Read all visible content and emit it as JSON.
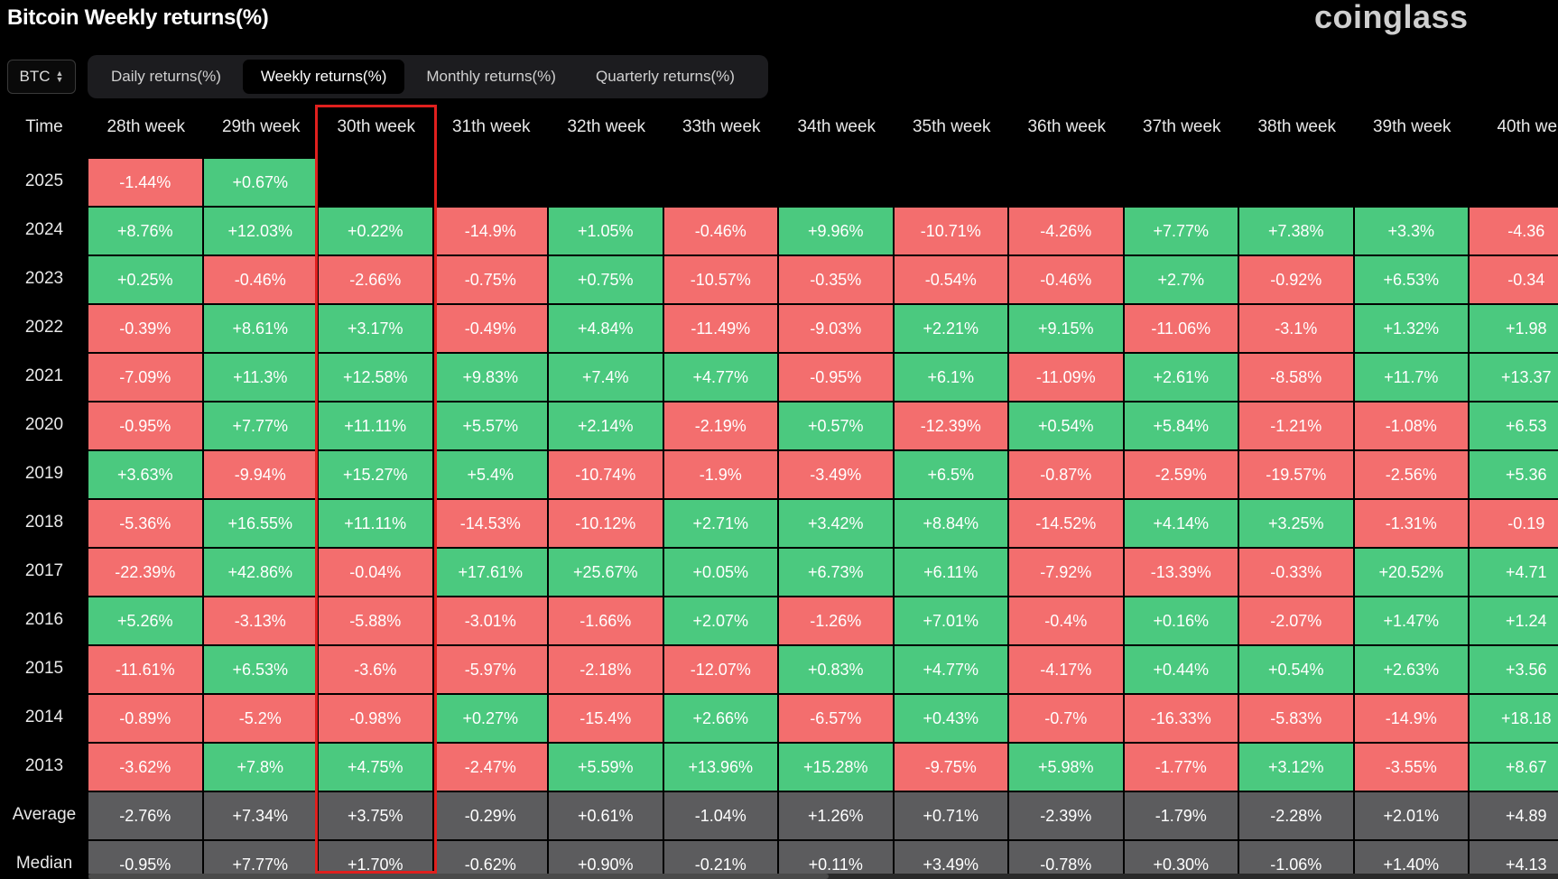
{
  "title": "Bitcoin Weekly returns(%)",
  "brand": "coinglass",
  "coin_select": {
    "value": "BTC",
    "icon": "updown-chevron-icon"
  },
  "tabs": [
    {
      "label": "Daily returns(%)",
      "active": false
    },
    {
      "label": "Weekly returns(%)",
      "active": true
    },
    {
      "label": "Monthly returns(%)",
      "active": false
    },
    {
      "label": "Quarterly returns(%)",
      "active": false
    }
  ],
  "colors": {
    "positive": "#4bc97f",
    "negative": "#f36e6e",
    "summary": "#5c5c5e",
    "highlight": "#e0201e"
  },
  "table": {
    "corner_label": "Time",
    "columns": [
      "28th week",
      "29th week",
      "30th week",
      "31th week",
      "32th week",
      "33th week",
      "34th week",
      "35th week",
      "36th week",
      "37th week",
      "38th week",
      "39th week",
      "40th we"
    ],
    "highlighted_column": "30th week",
    "rows": [
      {
        "label": "2025",
        "values": [
          "-1.44%",
          "+0.67%",
          "",
          "",
          "",
          "",
          "",
          "",
          "",
          "",
          "",
          "",
          ""
        ]
      },
      {
        "label": "2024",
        "values": [
          "+8.76%",
          "+12.03%",
          "+0.22%",
          "-14.9%",
          "+1.05%",
          "-0.46%",
          "+9.96%",
          "-10.71%",
          "-4.26%",
          "+7.77%",
          "+7.38%",
          "+3.3%",
          "-4.36"
        ]
      },
      {
        "label": "2023",
        "values": [
          "+0.25%",
          "-0.46%",
          "-2.66%",
          "-0.75%",
          "+0.75%",
          "-10.57%",
          "-0.35%",
          "-0.54%",
          "-0.46%",
          "+2.7%",
          "-0.92%",
          "+6.53%",
          "-0.34"
        ]
      },
      {
        "label": "2022",
        "values": [
          "-0.39%",
          "+8.61%",
          "+3.17%",
          "-0.49%",
          "+4.84%",
          "-11.49%",
          "-9.03%",
          "+2.21%",
          "+9.15%",
          "-11.06%",
          "-3.1%",
          "+1.32%",
          "+1.98"
        ]
      },
      {
        "label": "2021",
        "values": [
          "-7.09%",
          "+11.3%",
          "+12.58%",
          "+9.83%",
          "+7.4%",
          "+4.77%",
          "-0.95%",
          "+6.1%",
          "-11.09%",
          "+2.61%",
          "-8.58%",
          "+11.7%",
          "+13.37"
        ]
      },
      {
        "label": "2020",
        "values": [
          "-0.95%",
          "+7.77%",
          "+11.11%",
          "+5.57%",
          "+2.14%",
          "-2.19%",
          "+0.57%",
          "-12.39%",
          "+0.54%",
          "+5.84%",
          "-1.21%",
          "-1.08%",
          "+6.53"
        ]
      },
      {
        "label": "2019",
        "values": [
          "+3.63%",
          "-9.94%",
          "+15.27%",
          "+5.4%",
          "-10.74%",
          "-1.9%",
          "-3.49%",
          "+6.5%",
          "-0.87%",
          "-2.59%",
          "-19.57%",
          "-2.56%",
          "+5.36"
        ]
      },
      {
        "label": "2018",
        "values": [
          "-5.36%",
          "+16.55%",
          "+11.11%",
          "-14.53%",
          "-10.12%",
          "+2.71%",
          "+3.42%",
          "+8.84%",
          "-14.52%",
          "+4.14%",
          "+3.25%",
          "-1.31%",
          "-0.19"
        ]
      },
      {
        "label": "2017",
        "values": [
          "-22.39%",
          "+42.86%",
          "-0.04%",
          "+17.61%",
          "+25.67%",
          "+0.05%",
          "+6.73%",
          "+6.11%",
          "-7.92%",
          "-13.39%",
          "-0.33%",
          "+20.52%",
          "+4.71"
        ]
      },
      {
        "label": "2016",
        "values": [
          "+5.26%",
          "-3.13%",
          "-5.88%",
          "-3.01%",
          "-1.66%",
          "+2.07%",
          "-1.26%",
          "+7.01%",
          "-0.4%",
          "+0.16%",
          "-2.07%",
          "+1.47%",
          "+1.24"
        ]
      },
      {
        "label": "2015",
        "values": [
          "-11.61%",
          "+6.53%",
          "-3.6%",
          "-5.97%",
          "-2.18%",
          "-12.07%",
          "+0.83%",
          "+4.77%",
          "-4.17%",
          "+0.44%",
          "+0.54%",
          "+2.63%",
          "+3.56"
        ]
      },
      {
        "label": "2014",
        "values": [
          "-0.89%",
          "-5.2%",
          "-0.98%",
          "+0.27%",
          "-15.4%",
          "+2.66%",
          "-6.57%",
          "+0.43%",
          "-0.7%",
          "-16.33%",
          "-5.83%",
          "-14.9%",
          "+18.18"
        ]
      },
      {
        "label": "2013",
        "values": [
          "-3.62%",
          "+7.8%",
          "+4.75%",
          "-2.47%",
          "+5.59%",
          "+13.96%",
          "+15.28%",
          "-9.75%",
          "+5.98%",
          "-1.77%",
          "+3.12%",
          "-3.55%",
          "+8.67"
        ]
      }
    ],
    "summary_rows": [
      {
        "label": "Average",
        "values": [
          "-2.76%",
          "+7.34%",
          "+3.75%",
          "-0.29%",
          "+0.61%",
          "-1.04%",
          "+1.26%",
          "+0.71%",
          "-2.39%",
          "-1.79%",
          "-2.28%",
          "+2.01%",
          "+4.89"
        ]
      },
      {
        "label": "Median",
        "values": [
          "-0.95%",
          "+7.77%",
          "+1.70%",
          "-0.62%",
          "+0.90%",
          "-0.21%",
          "+0.11%",
          "+3.49%",
          "-0.78%",
          "+0.30%",
          "-1.06%",
          "+1.40%",
          "+4.13"
        ]
      }
    ]
  }
}
